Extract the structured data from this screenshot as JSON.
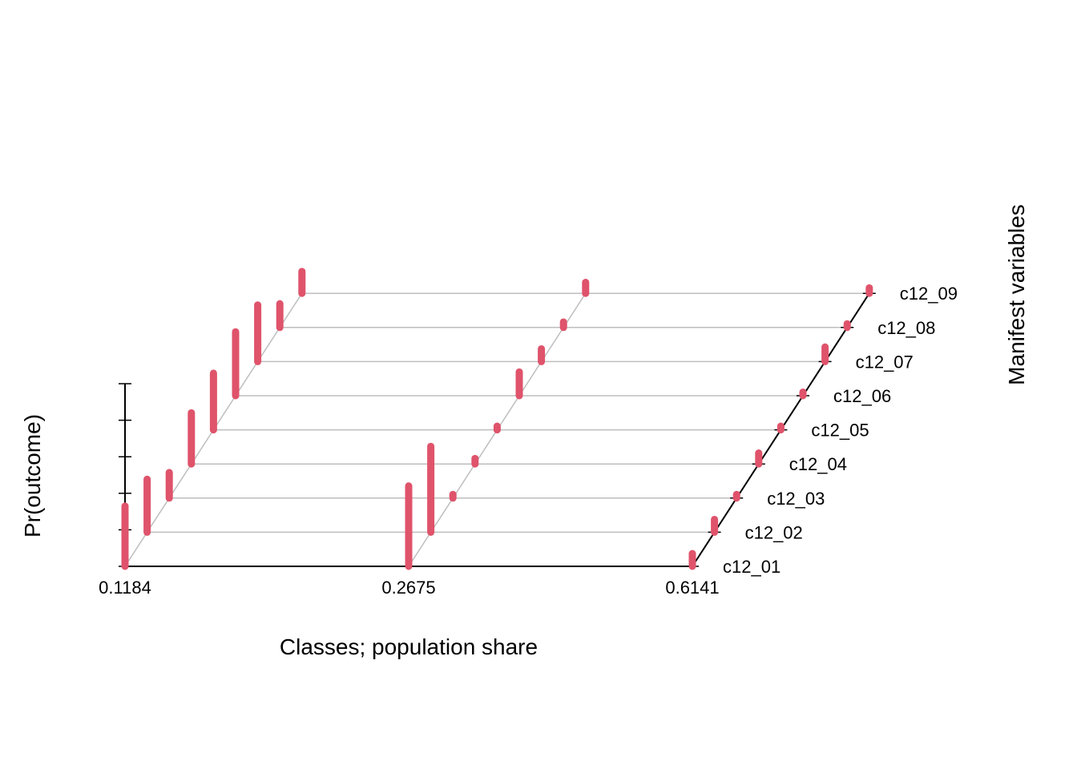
{
  "chart_data": {
    "type": "3d-bar",
    "xlabel": "Classes; population share",
    "ylabel": "Manifest variables",
    "zlabel": "Pr(outcome)",
    "classes": [
      "0.1184",
      "0.2675",
      "0.6141"
    ],
    "variables": [
      "c12_01",
      "c12_02",
      "c12_03",
      "c12_04",
      "c12_05",
      "c12_06",
      "c12_07",
      "c12_08",
      "c12_09"
    ],
    "zlim": [
      0,
      1
    ],
    "bar_color": "#DF536B",
    "grid_color": "#BEBEBE",
    "series": [
      {
        "name": "0.1184",
        "values": [
          0.33,
          0.29,
          0.14,
          0.28,
          0.31,
          0.35,
          0.31,
          0.13,
          0.12
        ]
      },
      {
        "name": "0.2675",
        "values": [
          0.44,
          0.47,
          0.02,
          0.03,
          0.02,
          0.13,
          0.07,
          0.03,
          0.06
        ]
      },
      {
        "name": "0.6141",
        "values": [
          0.07,
          0.07,
          0.02,
          0.06,
          0.02,
          0.02,
          0.08,
          0.02,
          0.03
        ]
      }
    ]
  }
}
